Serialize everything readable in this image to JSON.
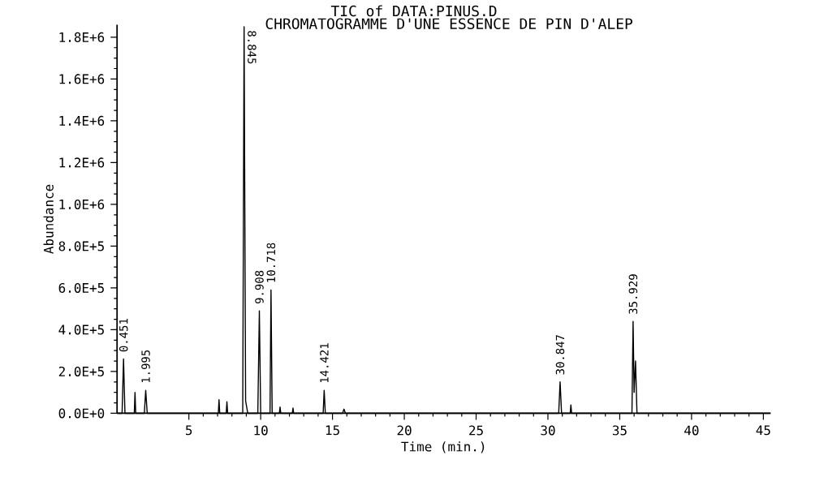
{
  "chart_data": {
    "type": "line",
    "title": "TIC of DATA:PINUS.D",
    "subtitle": "CHROMATOGRAMME D'UNE ESSENCE DE PIN D'ALEP",
    "xlabel": "Time (min.)",
    "ylabel": "Abundance",
    "color": "#000000",
    "marker": "none",
    "x": [
      0,
      0.35,
      0.451,
      0.55,
      1.2,
      1.25,
      1.3,
      1.9,
      1.995,
      2.1,
      7.05,
      7.1,
      7.15,
      7.6,
      7.65,
      7.7,
      8.75,
      8.845,
      8.95,
      9.1,
      9.8,
      9.908,
      10.0,
      10.2,
      10.65,
      10.718,
      10.8,
      11.3,
      11.35,
      11.4,
      12.2,
      12.25,
      12.3,
      14.35,
      14.421,
      14.5,
      15.7,
      15.8,
      15.9,
      30.75,
      30.847,
      30.95,
      31.55,
      31.6,
      31.65,
      35.85,
      35.929,
      36.0,
      36.1,
      36.2,
      45.5
    ],
    "values": [
      0,
      0,
      260000,
      0,
      0,
      100000,
      0,
      0,
      110000,
      0,
      0,
      65000,
      0,
      0,
      55000,
      0,
      0,
      1850000,
      60000,
      0,
      0,
      490000,
      0,
      0,
      0,
      590000,
      0,
      0,
      30000,
      0,
      0,
      25000,
      0,
      0,
      110000,
      0,
      0,
      20000,
      0,
      0,
      150000,
      0,
      0,
      40000,
      0,
      0,
      440000,
      100000,
      250000,
      0,
      0
    ],
    "xlim": [
      0,
      45.5
    ],
    "ylim": [
      0,
      1860000
    ],
    "xticks": [
      5,
      10,
      15,
      20,
      25,
      30,
      35,
      40,
      45
    ],
    "yticks": [
      {
        "value": 0,
        "label": "0.0E+0"
      },
      {
        "value": 200000,
        "label": "2.0E+5"
      },
      {
        "value": 400000,
        "label": "4.0E+5"
      },
      {
        "value": 600000,
        "label": "6.0E+5"
      },
      {
        "value": 800000,
        "label": "8.0E+5"
      },
      {
        "value": 1000000,
        "label": "1.0E+6"
      },
      {
        "value": 1200000,
        "label": "1.2E+6"
      },
      {
        "value": 1400000,
        "label": "1.4E+6"
      },
      {
        "value": 1600000,
        "label": "1.6E+6"
      },
      {
        "value": 1800000,
        "label": "1.8E+6"
      }
    ],
    "annotations": [
      {
        "text": "0.451",
        "x": 0.451,
        "y": 260000
      },
      {
        "text": "1.995",
        "x": 1.995,
        "y": 110000
      },
      {
        "text": "8.845",
        "x": 8.845,
        "y": 1850000
      },
      {
        "text": "9.908",
        "x": 9.908,
        "y": 490000
      },
      {
        "text": "10.718",
        "x": 10.718,
        "y": 590000
      },
      {
        "text": "14.421",
        "x": 14.421,
        "y": 110000
      },
      {
        "text": "30.847",
        "x": 30.847,
        "y": 150000
      },
      {
        "text": "35.929",
        "x": 35.929,
        "y": 440000
      }
    ]
  }
}
